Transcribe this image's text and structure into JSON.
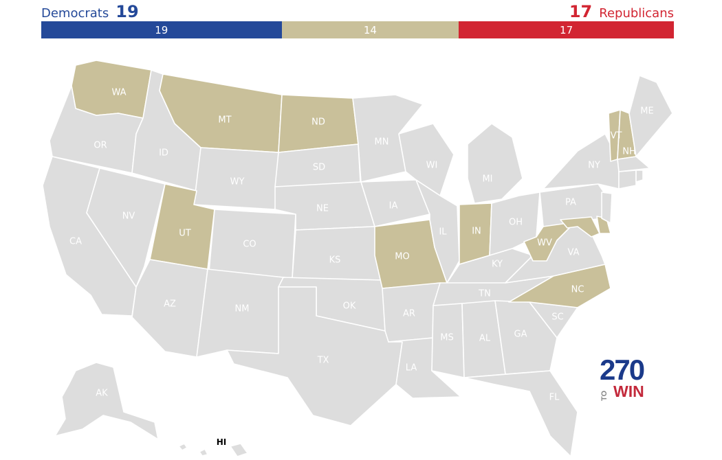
{
  "header": {
    "dem_label": "Democrats",
    "dem_total": "19",
    "rep_total": "17",
    "rep_label": "Republicans"
  },
  "bar": {
    "dem": {
      "value": 19,
      "label": "19",
      "color": "#244999"
    },
    "tossup": {
      "value": 14,
      "label": "14",
      "color": "#c9c09a"
    },
    "rep": {
      "value": 17,
      "label": "17",
      "color": "#d22532"
    }
  },
  "colors": {
    "no_race": "#dddddd",
    "tossup": "#c9c09a"
  },
  "states": [
    {
      "code": "WA",
      "label": "WA",
      "status": "tossup"
    },
    {
      "code": "OR",
      "label": "OR",
      "status": "none"
    },
    {
      "code": "CA",
      "label": "CA",
      "status": "none"
    },
    {
      "code": "ID",
      "label": "ID",
      "status": "none"
    },
    {
      "code": "NV",
      "label": "NV",
      "status": "none"
    },
    {
      "code": "MT",
      "label": "MT",
      "status": "tossup"
    },
    {
      "code": "WY",
      "label": "WY",
      "status": "none"
    },
    {
      "code": "UT",
      "label": "UT",
      "status": "tossup"
    },
    {
      "code": "AZ",
      "label": "AZ",
      "status": "none"
    },
    {
      "code": "CO",
      "label": "CO",
      "status": "none"
    },
    {
      "code": "NM",
      "label": "NM",
      "status": "none"
    },
    {
      "code": "ND",
      "label": "ND",
      "status": "tossup"
    },
    {
      "code": "SD",
      "label": "SD",
      "status": "none"
    },
    {
      "code": "NE",
      "label": "NE",
      "status": "none"
    },
    {
      "code": "KS",
      "label": "KS",
      "status": "none"
    },
    {
      "code": "OK",
      "label": "OK",
      "status": "none"
    },
    {
      "code": "TX",
      "label": "TX",
      "status": "none"
    },
    {
      "code": "MN",
      "label": "MN",
      "status": "none"
    },
    {
      "code": "IA",
      "label": "IA",
      "status": "none"
    },
    {
      "code": "MO",
      "label": "MO",
      "status": "tossup"
    },
    {
      "code": "AR",
      "label": "AR",
      "status": "none"
    },
    {
      "code": "LA",
      "label": "LA",
      "status": "none"
    },
    {
      "code": "WI",
      "label": "WI",
      "status": "none"
    },
    {
      "code": "IL",
      "label": "IL",
      "status": "none"
    },
    {
      "code": "MI",
      "label": "MI",
      "status": "none"
    },
    {
      "code": "IN",
      "label": "IN",
      "status": "tossup"
    },
    {
      "code": "OH",
      "label": "OH",
      "status": "none"
    },
    {
      "code": "KY",
      "label": "KY",
      "status": "none"
    },
    {
      "code": "TN",
      "label": "TN",
      "status": "none"
    },
    {
      "code": "MS",
      "label": "MS",
      "status": "none"
    },
    {
      "code": "AL",
      "label": "AL",
      "status": "none"
    },
    {
      "code": "GA",
      "label": "GA",
      "status": "none"
    },
    {
      "code": "FL",
      "label": "FL",
      "status": "none"
    },
    {
      "code": "SC",
      "label": "SC",
      "status": "none"
    },
    {
      "code": "NC",
      "label": "NC",
      "status": "tossup"
    },
    {
      "code": "VA",
      "label": "VA",
      "status": "none"
    },
    {
      "code": "WV",
      "label": "WV",
      "status": "tossup"
    },
    {
      "code": "PA",
      "label": "PA",
      "status": "none"
    },
    {
      "code": "NY",
      "label": "NY",
      "status": "none"
    },
    {
      "code": "VT",
      "label": "VT",
      "status": "tossup"
    },
    {
      "code": "NH",
      "label": "NH",
      "status": "tossup"
    },
    {
      "code": "ME",
      "label": "ME",
      "status": "none"
    },
    {
      "code": "MD",
      "label": "",
      "status": "tossup"
    },
    {
      "code": "DE",
      "label": "",
      "status": "tossup"
    },
    {
      "code": "NJ",
      "label": "",
      "status": "none"
    },
    {
      "code": "CT",
      "label": "",
      "status": "none"
    },
    {
      "code": "RI",
      "label": "",
      "status": "none"
    },
    {
      "code": "MA",
      "label": "",
      "status": "none"
    },
    {
      "code": "AK",
      "label": "AK",
      "status": "none"
    },
    {
      "code": "HI",
      "label": "HI",
      "status": "none"
    }
  ],
  "logo": {
    "big": "270",
    "small_rotated": "TO",
    "small": "WIN"
  }
}
